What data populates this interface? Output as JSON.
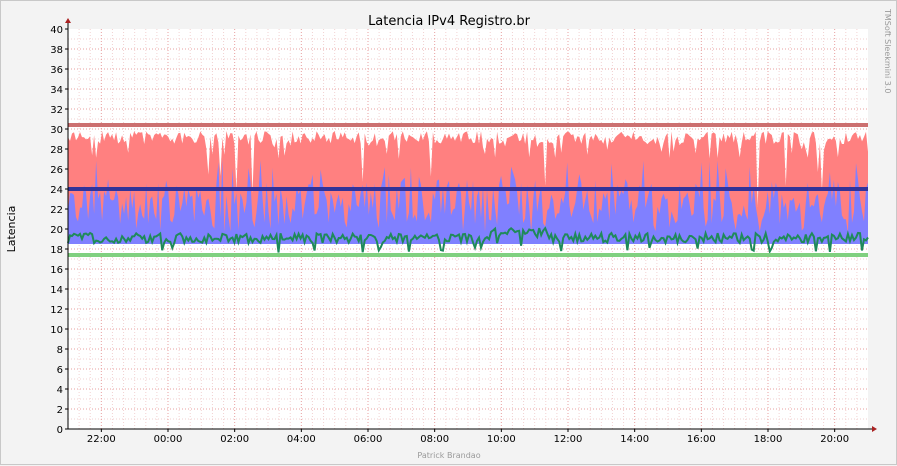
{
  "chart_data": {
    "type": "area",
    "title": "Latencia IPv4 Registro.br",
    "ylabel": "Latencia",
    "xlabel": "",
    "ylim": [
      0,
      40
    ],
    "yticks": [
      "0",
      "2",
      "4",
      "6",
      "8",
      "10",
      "12",
      "14",
      "16",
      "18",
      "20",
      "22",
      "24",
      "26",
      "28",
      "30",
      "32",
      "34",
      "36",
      "38",
      "40"
    ],
    "x_start": "21:00",
    "x_end": "21:00",
    "xticks": [
      "22:00",
      "00:00",
      "02:00",
      "04:00",
      "06:00",
      "08:00",
      "10:00",
      "12:00",
      "14:00",
      "16:00",
      "18:00",
      "20:00"
    ],
    "grid": true,
    "series": [
      {
        "name": "",
        "kind": "area",
        "color": "#ff8080",
        "band": [
          18,
          30
        ],
        "mean": 29
      },
      {
        "name": "",
        "kind": "area",
        "color": "#8080ff",
        "band": [
          18,
          26
        ],
        "mean": 23
      },
      {
        "name": "",
        "kind": "line",
        "color": "#1f8a5a",
        "mean": 19
      }
    ],
    "reference_lines": [
      {
        "value": 30.4,
        "color": "#cc7070"
      },
      {
        "value": 24.0,
        "color": "#333399"
      },
      {
        "value": 17.4,
        "color": "#80d080"
      }
    ],
    "watermark": "TMSoft Sleekmini 3.0",
    "author": "Patrick Brandao"
  }
}
